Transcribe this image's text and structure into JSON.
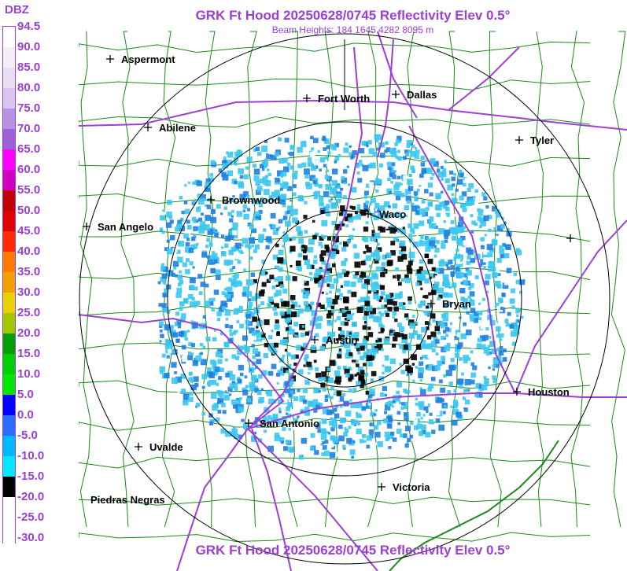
{
  "header": {
    "title": "GRK Ft Hood 20250628/0745 Reflectivity Elev 0.5°",
    "subtitle": "Beam Heights: 184 1645 4282 8095 m"
  },
  "footer": {
    "title": "GRK Ft Hood 20250628/0745 Reflectivity Elev 0.5°"
  },
  "legend": {
    "unit": "DBZ",
    "ticks": [
      "94.5",
      "90.0",
      "85.0",
      "80.0",
      "75.0",
      "70.0",
      "65.0",
      "60.0",
      "55.0",
      "50.0",
      "45.0",
      "40.0",
      "35.0",
      "30.0",
      "25.0",
      "20.0",
      "15.0",
      "10.0",
      "5.0",
      "0.0",
      "-5.0",
      "-10.0",
      "-15.0",
      "-20.0",
      "-25.0",
      "-30.0"
    ],
    "colors": [
      "#ffffff",
      "#f4eef9",
      "#e9dff3",
      "#d9c6ee",
      "#b593e0",
      "#9a62d6",
      "#ff00ff",
      "#d000c0",
      "#c00000",
      "#e00000",
      "#ff2a00",
      "#ff7b00",
      "#f0a000",
      "#e8d200",
      "#a0c800",
      "#00a000",
      "#00d000",
      "#00e800",
      "#0000ff",
      "#2c6bff",
      "#00b8ff",
      "#00e8ff",
      "#000000",
      "#ffffff",
      "#ffffff",
      "#ffffff"
    ]
  },
  "cities": [
    {
      "name": "Aspermont"
    },
    {
      "name": "Fort Worth"
    },
    {
      "name": "Dallas"
    },
    {
      "name": "Abilene"
    },
    {
      "name": "Tyler"
    },
    {
      "name": "Brownwood"
    },
    {
      "name": "Waco"
    },
    {
      "name": "San Angelo"
    },
    {
      "name": "Bryan"
    },
    {
      "name": "Austin"
    },
    {
      "name": "Houston"
    },
    {
      "name": "San Antonio"
    },
    {
      "name": "Uvalde"
    },
    {
      "name": "Victoria"
    },
    {
      "name": "Piedras Negras"
    }
  ],
  "map_legend_colors": {
    "county_lines": "#1a8a1a",
    "highways": "#9b3fd6",
    "range_rings": "#000000",
    "echo_light": "#3cc8f0",
    "echo_medium": "#1f7fe0"
  }
}
